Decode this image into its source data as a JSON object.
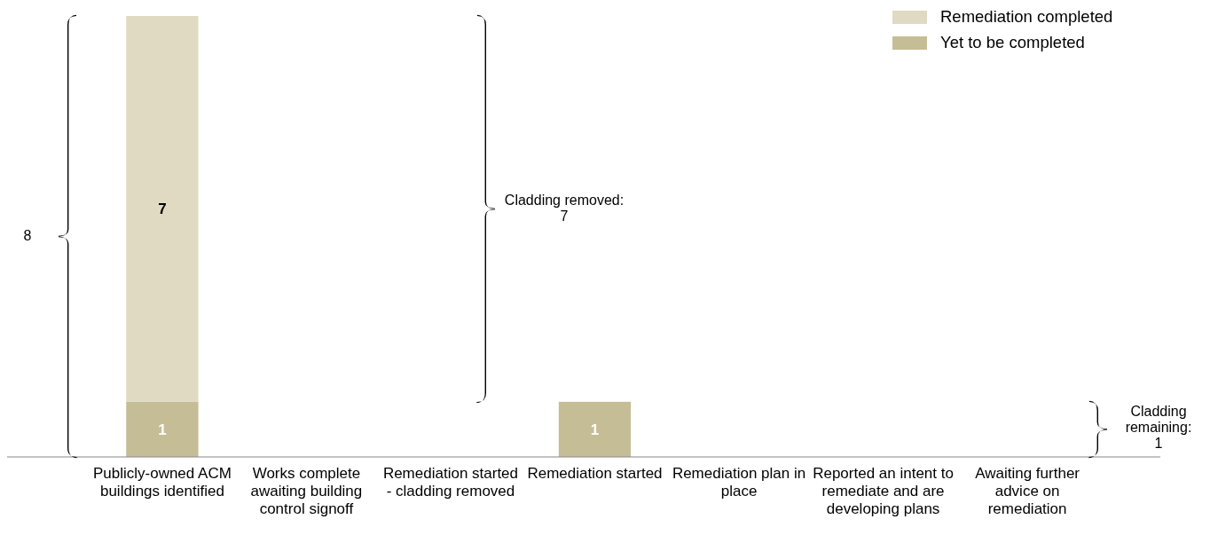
{
  "chart_data": {
    "type": "bar",
    "stacked": true,
    "categories": [
      "Publicly-owned ACM buildings identified",
      "Works complete awaiting building control signoff",
      "Remediation started - cladding removed",
      "Remediation started",
      "Remediation plan in place",
      "Reported an intent to remediate and are developing plans",
      "Awaiting further advice on remediation"
    ],
    "series": [
      {
        "name": "Yet to be completed",
        "color": "#c5bd96",
        "values": [
          1,
          0,
          0,
          1,
          0,
          0,
          0
        ],
        "value_labels": [
          "1",
          null,
          null,
          "1",
          null,
          null,
          null
        ]
      },
      {
        "name": "Remediation completed",
        "color": "#e0dac2",
        "values": [
          7,
          0,
          0,
          0,
          0,
          0,
          0
        ],
        "value_labels": [
          "7",
          null,
          null,
          null,
          null,
          null,
          null
        ]
      }
    ],
    "ylim": [
      0,
      8
    ],
    "tick_labels": "x",
    "legend": "top right",
    "annotations": [
      "8",
      "Cladding removed: 7",
      "Cladding remaining: 1"
    ]
  }
}
